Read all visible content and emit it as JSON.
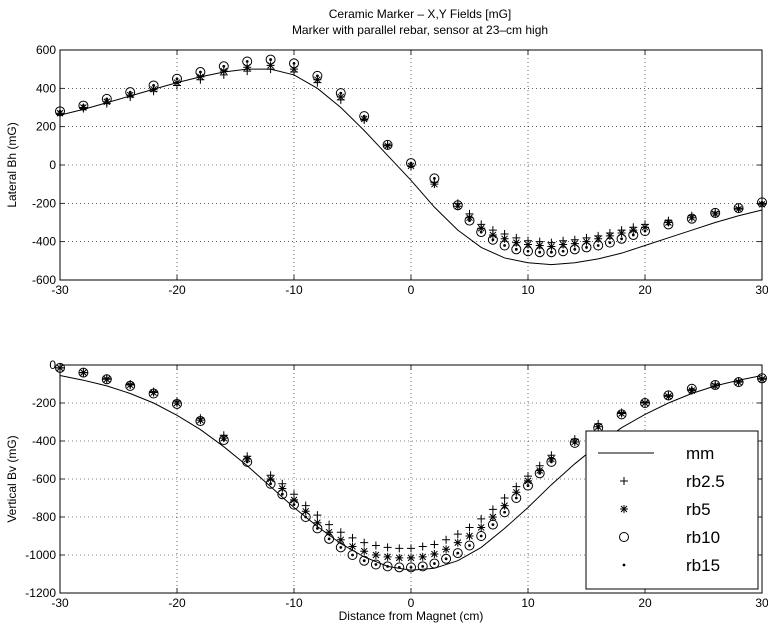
{
  "chart_data": [
    {
      "type": "scatter",
      "title": "Ceramic Marker – X,Y Fields [mG]",
      "subtitle": "Marker with parallel rebar, sensor at 23–cm high",
      "xlabel": "",
      "ylabel": "Lateral Bh (mG)",
      "xlim": [
        -30,
        30
      ],
      "ylim": [
        -600,
        600
      ],
      "xticks": [
        -30,
        -20,
        -10,
        0,
        10,
        20,
        30
      ],
      "yticks": [
        -600,
        -400,
        -200,
        0,
        200,
        400,
        600
      ],
      "grid": true,
      "series": [
        {
          "name": "mm",
          "style": "line",
          "x": [
            -30,
            -28,
            -26,
            -24,
            -22,
            -20,
            -18,
            -16,
            -14,
            -12,
            -10,
            -8,
            -6,
            -4,
            -2,
            0,
            2,
            4,
            6,
            8,
            10,
            12,
            14,
            16,
            18,
            20,
            22,
            24,
            26,
            28,
            30
          ],
          "y": [
            260,
            290,
            325,
            360,
            395,
            430,
            460,
            485,
            500,
            500,
            470,
            400,
            300,
            180,
            50,
            -80,
            -220,
            -340,
            -430,
            -485,
            -510,
            -520,
            -510,
            -490,
            -460,
            -420,
            -380,
            -340,
            -300,
            -265,
            -235
          ]
        },
        {
          "name": "rb2.5",
          "style": "plus",
          "x": [
            -30,
            -28,
            -26,
            -24,
            -22,
            -20,
            -18,
            -16,
            -14,
            -12,
            -10,
            -8,
            -6,
            -4,
            -2,
            0,
            2,
            4,
            5,
            6,
            7,
            8,
            9,
            10,
            11,
            12,
            13,
            14,
            15,
            16,
            17,
            18,
            19,
            20,
            22,
            24,
            26,
            28,
            30
          ],
          "y": [
            265,
            295,
            320,
            355,
            385,
            415,
            445,
            470,
            490,
            500,
            485,
            430,
            340,
            235,
            105,
            -5,
            -90,
            -200,
            -255,
            -310,
            -340,
            -360,
            -380,
            -395,
            -400,
            -405,
            -395,
            -390,
            -380,
            -370,
            -355,
            -340,
            -325,
            -310,
            -290,
            -265,
            -245,
            -225,
            -200
          ]
        },
        {
          "name": "rb5",
          "style": "star",
          "x": [
            -30,
            -28,
            -26,
            -24,
            -22,
            -20,
            -18,
            -16,
            -14,
            -12,
            -10,
            -8,
            -6,
            -4,
            -2,
            0,
            2,
            4,
            5,
            6,
            7,
            8,
            9,
            10,
            11,
            12,
            13,
            14,
            15,
            16,
            17,
            18,
            19,
            20,
            22,
            24,
            26,
            28,
            30
          ],
          "y": [
            270,
            300,
            330,
            365,
            395,
            430,
            460,
            490,
            510,
            520,
            500,
            445,
            355,
            240,
            100,
            -5,
            -100,
            -215,
            -275,
            -330,
            -365,
            -385,
            -405,
            -415,
            -420,
            -425,
            -415,
            -410,
            -400,
            -385,
            -370,
            -355,
            -340,
            -325,
            -300,
            -275,
            -255,
            -230,
            -205
          ]
        },
        {
          "name": "rb10",
          "style": "circle",
          "x": [
            -30,
            -28,
            -26,
            -24,
            -22,
            -20,
            -18,
            -16,
            -14,
            -12,
            -10,
            -8,
            -6,
            -4,
            -2,
            0,
            2,
            4,
            5,
            6,
            7,
            8,
            9,
            10,
            11,
            12,
            13,
            14,
            15,
            16,
            17,
            18,
            19,
            20,
            22,
            24,
            26,
            28,
            30
          ],
          "y": [
            280,
            310,
            345,
            380,
            415,
            450,
            485,
            515,
            540,
            550,
            530,
            465,
            375,
            255,
            105,
            10,
            -70,
            -210,
            -290,
            -350,
            -390,
            -420,
            -440,
            -450,
            -455,
            -455,
            -450,
            -440,
            -430,
            -420,
            -405,
            -385,
            -365,
            -345,
            -310,
            -280,
            -250,
            -225,
            -195
          ]
        },
        {
          "name": "rb15",
          "style": "dot",
          "x": [
            -30,
            -28,
            -26,
            -24,
            -22,
            -20,
            -18,
            -16,
            -14,
            -12,
            -10,
            -8,
            -6,
            -4,
            -2,
            0,
            2,
            4,
            5,
            6,
            7,
            8,
            9,
            10,
            11,
            12,
            13,
            14,
            15,
            16,
            17,
            18,
            19,
            20,
            22,
            24,
            26,
            28,
            30
          ],
          "y": [
            280,
            310,
            345,
            380,
            415,
            450,
            485,
            515,
            540,
            550,
            530,
            465,
            375,
            255,
            105,
            10,
            -70,
            -210,
            -290,
            -350,
            -390,
            -420,
            -440,
            -450,
            -455,
            -455,
            -450,
            -440,
            -430,
            -420,
            -405,
            -385,
            -365,
            -345,
            -310,
            -280,
            -250,
            -225,
            -195
          ]
        }
      ]
    },
    {
      "type": "scatter",
      "title": "",
      "xlabel": "Distance from Magnet (cm)",
      "ylabel": "Vertical Bv (mG)",
      "xlim": [
        -30,
        30
      ],
      "ylim": [
        -1200,
        0
      ],
      "xticks": [
        -30,
        -20,
        -10,
        0,
        10,
        20,
        30
      ],
      "yticks": [
        -1200,
        -1000,
        -800,
        -600,
        -400,
        -200,
        0
      ],
      "grid": true,
      "legend": "bottom-right",
      "series": [
        {
          "name": "mm",
          "style": "line",
          "x": [
            -30,
            -28,
            -26,
            -24,
            -22,
            -20,
            -18,
            -16,
            -14,
            -12,
            -10,
            -8,
            -6,
            -4,
            -2,
            0,
            2,
            4,
            6,
            8,
            10,
            12,
            14,
            16,
            18,
            20,
            22,
            24,
            26,
            28,
            30
          ],
          "y": [
            -55,
            -80,
            -110,
            -150,
            -200,
            -265,
            -340,
            -430,
            -530,
            -640,
            -750,
            -850,
            -940,
            -1010,
            -1060,
            -1080,
            -1070,
            -1030,
            -960,
            -860,
            -750,
            -630,
            -520,
            -420,
            -330,
            -260,
            -200,
            -150,
            -110,
            -80,
            -55
          ]
        },
        {
          "name": "rb2.5",
          "style": "plus",
          "x": [
            -30,
            -28,
            -26,
            -24,
            -22,
            -20,
            -18,
            -16,
            -14,
            -12,
            -11,
            -10,
            -9,
            -8,
            -7,
            -6,
            -5,
            -4,
            -3,
            -2,
            -1,
            0,
            1,
            2,
            3,
            4,
            5,
            6,
            7,
            8,
            9,
            10,
            11,
            12,
            14,
            16,
            18,
            20,
            22,
            24,
            26,
            28,
            30
          ],
          "y": [
            -15,
            -40,
            -70,
            -100,
            -140,
            -190,
            -280,
            -370,
            -480,
            -580,
            -625,
            -680,
            -740,
            -790,
            -840,
            -880,
            -910,
            -935,
            -950,
            -960,
            -965,
            -965,
            -955,
            -945,
            -920,
            -890,
            -855,
            -810,
            -760,
            -700,
            -640,
            -585,
            -530,
            -475,
            -390,
            -310,
            -250,
            -195,
            -160,
            -130,
            -100,
            -85,
            -70
          ]
        },
        {
          "name": "rb5",
          "style": "star",
          "x": [
            -30,
            -28,
            -26,
            -24,
            -22,
            -20,
            -18,
            -16,
            -14,
            -12,
            -11,
            -10,
            -9,
            -8,
            -7,
            -6,
            -5,
            -4,
            -3,
            -2,
            -1,
            0,
            1,
            2,
            3,
            4,
            5,
            6,
            7,
            8,
            9,
            10,
            11,
            12,
            14,
            16,
            18,
            20,
            22,
            24,
            26,
            28,
            30
          ],
          "y": [
            -15,
            -40,
            -75,
            -105,
            -145,
            -200,
            -290,
            -385,
            -495,
            -600,
            -650,
            -710,
            -770,
            -830,
            -880,
            -920,
            -955,
            -980,
            -1000,
            -1010,
            -1015,
            -1015,
            -1010,
            -995,
            -970,
            -935,
            -900,
            -855,
            -800,
            -740,
            -670,
            -610,
            -555,
            -495,
            -405,
            -325,
            -255,
            -200,
            -165,
            -135,
            -110,
            -90,
            -75
          ]
        },
        {
          "name": "rb10",
          "style": "circle",
          "x": [
            -30,
            -28,
            -26,
            -24,
            -22,
            -20,
            -18,
            -16,
            -14,
            -12,
            -11,
            -10,
            -9,
            -8,
            -7,
            -6,
            -5,
            -4,
            -3,
            -2,
            -1,
            0,
            1,
            2,
            3,
            4,
            5,
            6,
            7,
            8,
            9,
            10,
            11,
            12,
            14,
            16,
            18,
            20,
            22,
            24,
            26,
            28,
            30
          ],
          "y": [
            -15,
            -40,
            -75,
            -110,
            -150,
            -205,
            -295,
            -395,
            -510,
            -625,
            -680,
            -735,
            -800,
            -860,
            -915,
            -960,
            -1000,
            -1030,
            -1050,
            -1060,
            -1065,
            -1065,
            -1060,
            -1045,
            -1020,
            -990,
            -950,
            -900,
            -840,
            -775,
            -700,
            -635,
            -570,
            -510,
            -410,
            -330,
            -260,
            -200,
            -160,
            -125,
            -105,
            -90,
            -70
          ]
        },
        {
          "name": "rb15",
          "style": "dot",
          "x": [
            -30,
            -28,
            -26,
            -24,
            -22,
            -20,
            -18,
            -16,
            -14,
            -12,
            -11,
            -10,
            -9,
            -8,
            -7,
            -6,
            -5,
            -4,
            -3,
            -2,
            -1,
            0,
            1,
            2,
            3,
            4,
            5,
            6,
            7,
            8,
            9,
            10,
            11,
            12,
            14,
            16,
            18,
            20,
            22,
            24,
            26,
            28,
            30
          ],
          "y": [
            -15,
            -40,
            -75,
            -110,
            -150,
            -205,
            -295,
            -395,
            -510,
            -625,
            -680,
            -735,
            -800,
            -860,
            -915,
            -960,
            -1000,
            -1030,
            -1050,
            -1060,
            -1065,
            -1065,
            -1060,
            -1045,
            -1020,
            -990,
            -950,
            -900,
            -840,
            -775,
            -700,
            -635,
            -570,
            -510,
            -410,
            -330,
            -260,
            -200,
            -160,
            -125,
            -105,
            -90,
            -70
          ]
        }
      ]
    }
  ]
}
